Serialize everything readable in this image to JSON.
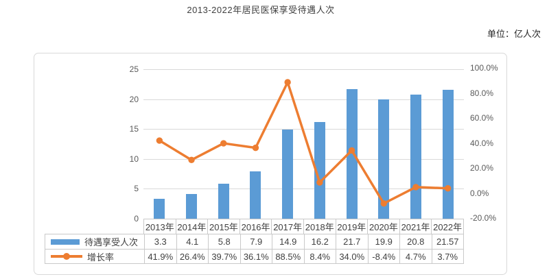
{
  "title": "2013-2022年居民医保享受待遇人次",
  "unit_label": "单位：亿人次",
  "colors": {
    "bar": "#5b9bd5",
    "line": "#ed7d31",
    "gridline": "#d9d9d9",
    "table_border": "#c9c9c9",
    "text": "#404040",
    "axis_text": "#595959"
  },
  "chart_data": {
    "type": "combo-bar-line",
    "title": "2013-2022年居民医保享受待遇人次",
    "unit": "单位：亿人次",
    "categories": [
      "2013年",
      "2014年",
      "2015年",
      "2016年",
      "2017年",
      "2018年",
      "2019年",
      "2020年",
      "2021年",
      "2022年"
    ],
    "series": [
      {
        "name": "待遇享受人次",
        "type": "bar",
        "axis": "left",
        "values": [
          3.3,
          4.1,
          5.8,
          7.9,
          14.9,
          16.2,
          21.7,
          19.9,
          20.8,
          21.57
        ],
        "labels": [
          "3.3",
          "4.1",
          "5.8",
          "7.9",
          "14.9",
          "16.2",
          "21.7",
          "19.9",
          "20.8",
          "21.57"
        ]
      },
      {
        "name": "增长率",
        "type": "line",
        "axis": "right",
        "values": [
          41.9,
          26.4,
          39.7,
          36.1,
          88.5,
          8.4,
          34.0,
          -8.4,
          4.7,
          3.7
        ],
        "labels": [
          "41.9%",
          "26.4%",
          "39.7%",
          "36.1%",
          "88.5%",
          "8.4%",
          "34.0%",
          "-8.4%",
          "4.7%",
          "3.7%"
        ]
      }
    ],
    "left_axis": {
      "range": [
        0,
        25
      ],
      "tick_values": [
        25,
        20,
        15,
        10,
        5,
        0
      ],
      "tick_labels": [
        "25",
        "20",
        "15",
        "10",
        "5",
        "0"
      ]
    },
    "right_axis": {
      "range": [
        -20,
        100
      ],
      "tick_values": [
        100,
        80,
        60,
        40,
        20,
        0,
        -20
      ],
      "tick_labels": [
        "100.0%",
        "80.0%",
        "60.0%",
        "40.0%",
        "20.0%",
        "0.0%",
        "-20.0%"
      ]
    },
    "grid": true,
    "legend_position": "data-table-left",
    "data_table": true
  }
}
